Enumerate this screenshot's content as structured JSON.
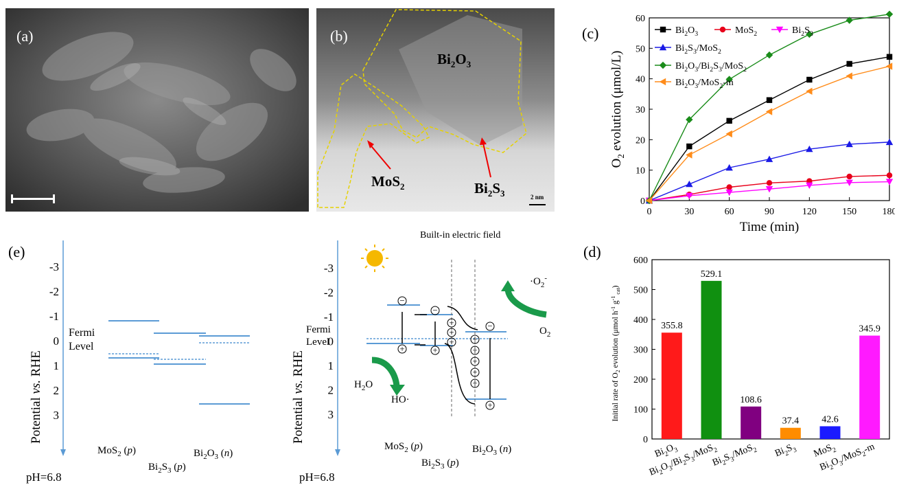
{
  "panels": {
    "a": {
      "label": "(a)"
    },
    "b": {
      "label": "(b)",
      "labels": {
        "bi2o3": "Bi2O3",
        "mos2": "MoS2",
        "bi2s3": "Bi2S3"
      },
      "scale": "2 nm"
    },
    "c": {
      "label": "(c)"
    },
    "d": {
      "label": "(d)"
    },
    "e": {
      "label": "(e)",
      "left": {
        "ylabel": "Potential vs. RHE",
        "ticks": [
          "-3",
          "-2",
          "-1",
          "0",
          "1",
          "2",
          "3"
        ],
        "fermi": "Fermi\nLevel",
        "materials": [
          "MoS2 (p)",
          "Bi2S3 (p)",
          "Bi2O3 (n)"
        ],
        "ph": "pH=6.8"
      },
      "right": {
        "title": "Built-in electric field",
        "ylabel": "Potential vs. RHE",
        "ticks": [
          "-3",
          "-2",
          "-1",
          "0",
          "1",
          "2",
          "3"
        ],
        "fermi": "Fermi\nLevel",
        "materials": [
          "MoS2 (p)",
          "Bi2S3 (p)",
          "Bi2O3 (n)"
        ],
        "ph": "pH=6.8",
        "species": {
          "h2o": "H2O",
          "ho": "HO·",
          "o2": "O2",
          "o2rad": "·O2-"
        }
      }
    }
  },
  "chart_data": [
    {
      "type": "line",
      "xlabel": "Time (min)",
      "ylabel": "O2 evolution (μmol/L)",
      "x": [
        0,
        30,
        60,
        90,
        120,
        150,
        180
      ],
      "xlim": [
        0,
        180
      ],
      "ylim": [
        0,
        60
      ],
      "yticks": [
        0,
        10,
        20,
        30,
        40,
        50,
        60
      ],
      "xticks": [
        0,
        30,
        60,
        90,
        120,
        150,
        180
      ],
      "legend": "top-left",
      "series": [
        {
          "name": "Bi2O3",
          "color": "#000000",
          "marker": "square",
          "values": [
            0,
            17.8,
            26.2,
            33.0,
            39.7,
            44.9,
            47.2
          ]
        },
        {
          "name": "MoS2",
          "color": "#e8001a",
          "marker": "circle",
          "values": [
            0,
            2.0,
            4.4,
            5.8,
            6.4,
            7.9,
            8.3
          ]
        },
        {
          "name": "Bi2S3",
          "color": "#ff00ff",
          "marker": "triangle-down",
          "values": [
            0,
            1.6,
            2.7,
            3.8,
            5.0,
            5.9,
            6.2
          ]
        },
        {
          "name": "Bi2S3/MoS2",
          "color": "#1a1ae6",
          "marker": "triangle-up",
          "values": [
            0,
            5.4,
            10.8,
            13.6,
            16.9,
            18.5,
            19.2
          ]
        },
        {
          "name": "Bi2O3/Bi2S3/MoS2",
          "color": "#1a8c1a",
          "marker": "diamond",
          "values": [
            0,
            26.6,
            39.8,
            47.8,
            54.6,
            59.2,
            61.2
          ]
        },
        {
          "name": "Bi2O3/MoS2-m",
          "color": "#ff8c1a",
          "marker": "triangle-left",
          "values": [
            0,
            15.0,
            21.9,
            29.2,
            35.9,
            40.9,
            44.1
          ]
        }
      ]
    },
    {
      "type": "bar",
      "ylabel": "Initial rate of O2 evolution (μmol h-1 g-1 cat)",
      "ylim": [
        0,
        600
      ],
      "yticks": [
        0,
        100,
        200,
        300,
        400,
        500,
        600
      ],
      "categories": [
        "Bi2O3",
        "Bi2O3/Bi2S3/MoS2",
        "Bi2S3/MoS2",
        "Bi2S3",
        "MoS2",
        "Bi2O3/MoS2-m"
      ],
      "values": [
        355.8,
        529.1,
        108.6,
        37.4,
        42.6,
        345.9
      ],
      "value_labels": [
        "355.8",
        "529.1",
        "108.6",
        "37.4",
        "42.6",
        "345.9"
      ],
      "colors": [
        "#ff1a1a",
        "#109010",
        "#800080",
        "#ff8c00",
        "#1a1aff",
        "#ff1aff"
      ]
    }
  ]
}
